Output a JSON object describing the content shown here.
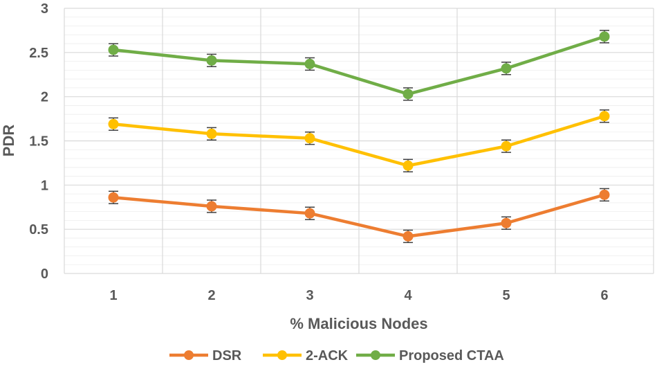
{
  "chart_data": {
    "type": "line",
    "title": "",
    "xlabel": "% Malicious Nodes",
    "ylabel": "PDR",
    "categories": [
      "1",
      "2",
      "3",
      "4",
      "5",
      "6"
    ],
    "ylim": [
      0,
      3
    ],
    "yticks": [
      "0",
      "0.5",
      "1",
      "1.5",
      "2",
      "2.5",
      "3"
    ],
    "ytick_values": [
      0,
      0.5,
      1,
      1.5,
      2,
      2.5,
      3
    ],
    "grid": true,
    "error_bars": true,
    "error_bar_size": 0.07,
    "legend_position": "bottom",
    "series": [
      {
        "name": "DSR",
        "color": "#ED7D31",
        "values": [
          0.86,
          0.76,
          0.68,
          0.42,
          0.57,
          0.89
        ]
      },
      {
        "name": "2-ACK",
        "color": "#FFC000",
        "values": [
          1.69,
          1.58,
          1.53,
          1.22,
          1.44,
          1.78
        ]
      },
      {
        "name": "Proposed CTAA",
        "color": "#70AD47",
        "values": [
          2.53,
          2.41,
          2.37,
          2.03,
          2.32,
          2.68
        ]
      }
    ]
  }
}
